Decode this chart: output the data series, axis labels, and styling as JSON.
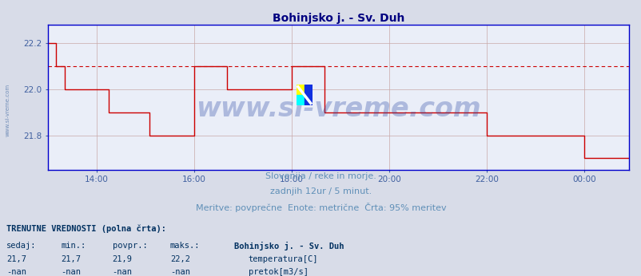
{
  "title": "Bohinjsko j. - Sv. Duh",
  "title_color": "#000080",
  "title_fontsize": 10,
  "bg_color": "#d8dce8",
  "plot_bg_color": "#eaeef8",
  "grid_color": "#c8a8a8",
  "line_color": "#cc0000",
  "dashed_line_color": "#cc0000",
  "dashed_line_y": 22.1,
  "axis_color": "#0000cc",
  "tick_color": "#4060a0",
  "xlim": [
    0,
    143
  ],
  "ylim": [
    21.65,
    22.28
  ],
  "yticks": [
    21.8,
    22.0,
    22.2
  ],
  "xtick_labels": [
    "14:00",
    "16:00",
    "18:00",
    "20:00",
    "22:00",
    "00:00"
  ],
  "xtick_positions": [
    12,
    36,
    60,
    84,
    108,
    132
  ],
  "watermark": "www.si-vreme.com",
  "watermark_color": "#2040a0",
  "watermark_alpha": 0.3,
  "watermark_fontsize": 24,
  "footer_lines": [
    "Slovenija / reke in morje.",
    "zadnjih 12ur / 5 minut.",
    "Meritve: povprečne  Enote: metrične  Črta: 95% meritev"
  ],
  "footer_color": "#6090b8",
  "footer_fontsize": 8,
  "bottom_label_title": "TRENUTNE VREDNOSTI (polna črta):",
  "bottom_label_headers": [
    "sedaj:",
    "min.:",
    "povpr.:",
    "maks.:",
    "Bohinjsko j. - Sv. Duh"
  ],
  "bottom_label_row1": [
    "21,7",
    "21,7",
    "21,9",
    "22,2",
    "temperatura[C]"
  ],
  "bottom_label_row2": [
    "-nan",
    "-nan",
    "-nan",
    "-nan",
    "pretok[m3/s]"
  ],
  "legend_color1": "#cc0000",
  "legend_color2": "#00bb00",
  "side_label": "www.si-vreme.com",
  "side_label_color": "#6080b0",
  "time_data": [
    0,
    1,
    2,
    3,
    4,
    5,
    6,
    7,
    8,
    9,
    10,
    11,
    12,
    13,
    14,
    15,
    16,
    17,
    18,
    19,
    20,
    21,
    22,
    23,
    24,
    25,
    26,
    27,
    28,
    29,
    30,
    31,
    32,
    33,
    34,
    35,
    36,
    37,
    38,
    39,
    40,
    41,
    42,
    43,
    44,
    45,
    46,
    47,
    48,
    49,
    50,
    51,
    52,
    53,
    54,
    55,
    56,
    57,
    58,
    59,
    60,
    61,
    62,
    63,
    64,
    65,
    66,
    67,
    68,
    69,
    70,
    71,
    72,
    73,
    74,
    75,
    76,
    77,
    78,
    79,
    80,
    81,
    82,
    83,
    84,
    85,
    86,
    87,
    88,
    89,
    90,
    91,
    92,
    93,
    94,
    95,
    96,
    97,
    98,
    99,
    100,
    101,
    102,
    103,
    104,
    105,
    106,
    107,
    108,
    109,
    110,
    111,
    112,
    113,
    114,
    115,
    116,
    117,
    118,
    119,
    120,
    121,
    122,
    123,
    124,
    125,
    126,
    127,
    128,
    129,
    130,
    131,
    132,
    133,
    134,
    135,
    136,
    137,
    138,
    139,
    140,
    141,
    142,
    143
  ],
  "temp_data": [
    22.2,
    22.2,
    22.1,
    22.1,
    22.0,
    22.0,
    22.0,
    22.0,
    22.0,
    22.0,
    22.0,
    22.0,
    22.0,
    22.0,
    22.0,
    21.9,
    21.9,
    21.9,
    21.9,
    21.9,
    21.9,
    21.9,
    21.9,
    21.9,
    21.9,
    21.8,
    21.8,
    21.8,
    21.8,
    21.8,
    21.8,
    21.8,
    21.8,
    21.8,
    21.8,
    21.8,
    22.1,
    22.1,
    22.1,
    22.1,
    22.1,
    22.1,
    22.1,
    22.1,
    22.0,
    22.0,
    22.0,
    22.0,
    22.0,
    22.0,
    22.0,
    22.0,
    22.0,
    22.0,
    22.0,
    22.0,
    22.0,
    22.0,
    22.0,
    22.0,
    22.1,
    22.1,
    22.1,
    22.1,
    22.1,
    22.1,
    22.1,
    22.1,
    21.9,
    21.9,
    21.9,
    21.9,
    21.9,
    21.9,
    21.9,
    21.9,
    21.9,
    21.9,
    21.9,
    21.9,
    21.9,
    21.9,
    21.9,
    21.9,
    21.9,
    21.9,
    21.9,
    21.9,
    21.9,
    21.9,
    21.9,
    21.9,
    21.9,
    21.9,
    21.9,
    21.9,
    21.9,
    21.9,
    21.9,
    21.9,
    21.9,
    21.9,
    21.9,
    21.9,
    21.9,
    21.9,
    21.9,
    21.9,
    21.8,
    21.8,
    21.8,
    21.8,
    21.8,
    21.8,
    21.8,
    21.8,
    21.8,
    21.8,
    21.8,
    21.8,
    21.8,
    21.8,
    21.8,
    21.8,
    21.8,
    21.8,
    21.8,
    21.8,
    21.8,
    21.8,
    21.8,
    21.8,
    21.7,
    21.7,
    21.7,
    21.7,
    21.7,
    21.7,
    21.7,
    21.7,
    21.7,
    21.7,
    21.7,
    21.7
  ]
}
